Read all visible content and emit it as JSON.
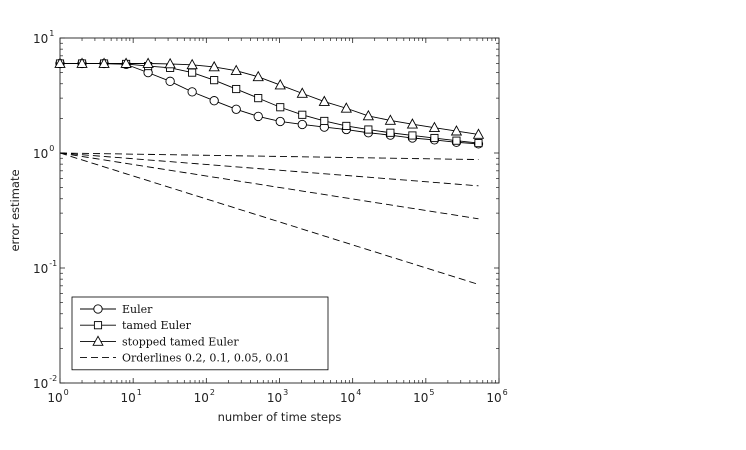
{
  "chart_data": {
    "type": "line",
    "title": "",
    "xlabel": "number of time steps",
    "ylabel": "error estimate",
    "xscale": "log",
    "yscale": "log",
    "xlim": [
      1,
      1000000
    ],
    "ylim": [
      0.01,
      10
    ],
    "x_ticks": [
      {
        "base": "10",
        "exp": "0"
      },
      {
        "base": "10",
        "exp": "1"
      },
      {
        "base": "10",
        "exp": "2"
      },
      {
        "base": "10",
        "exp": "3"
      },
      {
        "base": "10",
        "exp": "4"
      },
      {
        "base": "10",
        "exp": "5"
      },
      {
        "base": "10",
        "exp": "6"
      }
    ],
    "y_ticks": [
      {
        "base": "10",
        "exp": "-2"
      },
      {
        "base": "10",
        "exp": "-1"
      },
      {
        "base": "10",
        "exp": "0"
      },
      {
        "base": "10",
        "exp": "1"
      }
    ],
    "grid": false,
    "legend_position": "bottom-left",
    "series": [
      {
        "name": "Euler",
        "marker": "circle",
        "dash": "solid",
        "x": [
          1,
          2,
          4,
          8,
          16,
          32,
          64,
          128,
          256,
          512,
          1024,
          2048,
          4096,
          8192,
          16384,
          32768,
          65536,
          131072,
          262144,
          524288
        ],
        "y": [
          6.0,
          6.0,
          6.0,
          5.9,
          5.0,
          4.2,
          3.4,
          2.85,
          2.4,
          2.08,
          1.88,
          1.77,
          1.68,
          1.6,
          1.5,
          1.43,
          1.35,
          1.3,
          1.24,
          1.2
        ]
      },
      {
        "name": "tamed Euler",
        "marker": "square",
        "dash": "solid",
        "x": [
          1,
          2,
          4,
          8,
          16,
          32,
          64,
          128,
          256,
          512,
          1024,
          2048,
          4096,
          8192,
          16384,
          32768,
          65536,
          131072,
          262144,
          524288
        ],
        "y": [
          6.0,
          6.0,
          6.0,
          5.95,
          5.7,
          5.5,
          5.0,
          4.3,
          3.6,
          3.0,
          2.5,
          2.15,
          1.9,
          1.72,
          1.6,
          1.5,
          1.42,
          1.35,
          1.28,
          1.22
        ]
      },
      {
        "name": "stopped tamed Euler",
        "marker": "triangle",
        "dash": "solid",
        "x": [
          1,
          2,
          4,
          8,
          16,
          32,
          64,
          128,
          256,
          512,
          1024,
          2048,
          4096,
          8192,
          16384,
          32768,
          65536,
          131072,
          262144,
          524288
        ],
        "y": [
          6.0,
          6.0,
          6.0,
          6.0,
          6.0,
          5.95,
          5.85,
          5.6,
          5.2,
          4.6,
          3.9,
          3.3,
          2.8,
          2.45,
          2.1,
          1.92,
          1.78,
          1.66,
          1.55,
          1.45
        ]
      },
      {
        "name": "Orderlines 0.2, 0.1, 0.05, 0.01",
        "marker": "none",
        "dash": "dashed",
        "legend_only_first": true,
        "lines": [
          {
            "order": 0.01,
            "x": [
              1,
              524288
            ],
            "y": [
              1,
              0.877
            ]
          },
          {
            "order": 0.05,
            "x": [
              1,
              524288
            ],
            "y": [
              1,
              0.518
            ]
          },
          {
            "order": 0.1,
            "x": [
              1,
              524288
            ],
            "y": [
              1,
              0.268
            ]
          },
          {
            "order": 0.2,
            "x": [
              1,
              524288
            ],
            "y": [
              1,
              0.072
            ]
          }
        ]
      }
    ]
  },
  "colors": {
    "line": "#000000",
    "axis": "#222222",
    "background": "#ffffff"
  }
}
